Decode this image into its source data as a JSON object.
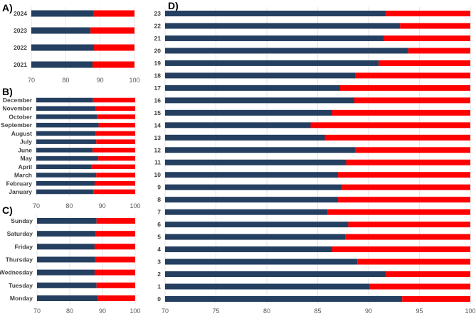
{
  "colors": {
    "primary": "#243f60",
    "remainder": "#ff0000",
    "grid": "#e6e6e6"
  },
  "chart_data": [
    {
      "type": "bar",
      "orientation": "horizontal",
      "stacked": true,
      "panel_label": "A)",
      "categories": [
        "2024",
        "2023",
        "2022",
        "2021"
      ],
      "values": [
        88.0,
        87.2,
        88.2,
        87.8
      ],
      "xlim": [
        70,
        100
      ],
      "xticks": [
        "70",
        "80",
        "90",
        "100"
      ],
      "grid": true
    },
    {
      "type": "bar",
      "orientation": "horizontal",
      "stacked": true,
      "panel_label": "B)",
      "categories": [
        "December",
        "November",
        "October",
        "September",
        "August",
        "July",
        "June",
        "May",
        "April",
        "March",
        "February",
        "January"
      ],
      "values": [
        87.2,
        88.0,
        88.4,
        88.9,
        88.0,
        88.2,
        87.1,
        88.8,
        86.7,
        88.2,
        87.7,
        87.3
      ],
      "xlim": [
        70,
        100
      ],
      "xticks": [
        "70",
        "80",
        "90",
        "100"
      ],
      "grid": true
    },
    {
      "type": "bar",
      "orientation": "horizontal",
      "stacked": true,
      "panel_label": "C)",
      "categories": [
        "Sunday",
        "Saturday",
        "Friday",
        "Thursday",
        "Wednesday",
        "Tuesday",
        "Monday"
      ],
      "values": [
        88.2,
        88.0,
        87.6,
        87.8,
        87.6,
        88.2,
        88.5
      ],
      "xlim": [
        70,
        100
      ],
      "xticks": [
        "70",
        "80",
        "90",
        "100"
      ],
      "grid": true
    },
    {
      "type": "bar",
      "orientation": "horizontal",
      "stacked": true,
      "panel_label": "D)",
      "categories": [
        "23",
        "22",
        "21",
        "20",
        "19",
        "18",
        "17",
        "16",
        "15",
        "14",
        "13",
        "12",
        "11",
        "10",
        "9",
        "8",
        "7",
        "6",
        "5",
        "4",
        "3",
        "2",
        "1",
        "0"
      ],
      "values": [
        91.7,
        93.1,
        91.5,
        93.9,
        91.0,
        88.7,
        87.2,
        88.6,
        86.4,
        84.3,
        85.7,
        88.7,
        87.8,
        87.0,
        87.4,
        87.0,
        86.0,
        88.0,
        87.7,
        86.4,
        88.9,
        91.7,
        90.1,
        93.3
      ],
      "xlim": [
        70,
        100
      ],
      "xticks": [
        "70",
        "75",
        "80",
        "85",
        "90",
        "95",
        "100"
      ],
      "grid": true
    }
  ]
}
